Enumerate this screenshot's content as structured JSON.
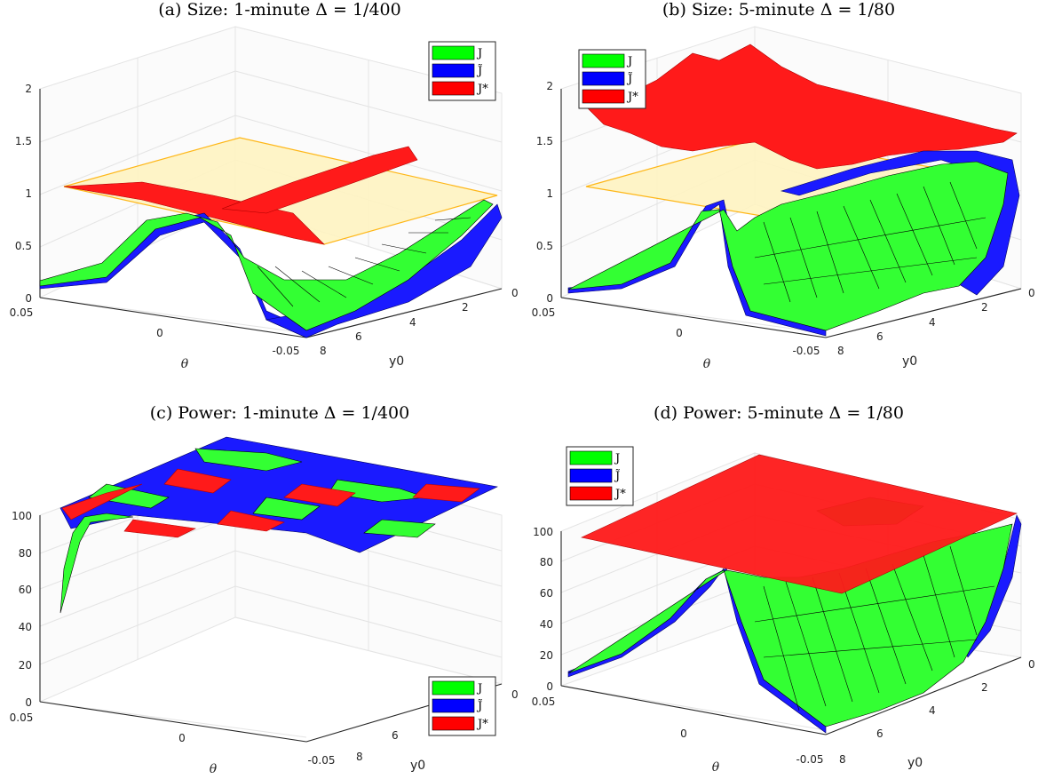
{
  "colors": {
    "J": "#00ff00",
    "J_tilde": "#0000ff",
    "J_star": "#ff0000",
    "nominal_plane": "#ffd966",
    "grid": "#e4e4e4",
    "axis": "#262626"
  },
  "legend_labels": [
    "J",
    "J̃",
    "J*"
  ],
  "chart_data": [
    {
      "type": "surface",
      "title": "(a) Size:  1-minute Δ = 1/400",
      "xlabel": "θ",
      "ylabel": "y0",
      "zlim": [
        0,
        2
      ],
      "x_ticks": [
        "0.05",
        "0",
        "-0.05"
      ],
      "y_ticks": [
        "0",
        "2",
        "4",
        "6",
        "8"
      ],
      "z_ticks": [
        "0",
        "0.5",
        "1",
        "1.5",
        "2"
      ],
      "nominal_plane_z": 1,
      "legend_position": "top-right",
      "series": [
        {
          "name": "J",
          "description": "low (~0.05) at θ = 0.05, rises to ~0.8 around θ = 0.02, dips toward 0 near θ = 0, rises back to ~0.9 at θ = -0.05"
        },
        {
          "name": "J̃",
          "description": "closely follows J, slightly above it"
        },
        {
          "name": "J*",
          "description": "near 1, slightly above and below the nominal plane"
        }
      ]
    },
    {
      "type": "surface",
      "title": "(b) Size:  5-minute Δ = 1/80",
      "xlabel": "θ",
      "ylabel": "y0",
      "zlim": [
        0,
        2
      ],
      "x_ticks": [
        "0.05",
        "0",
        "-0.05"
      ],
      "y_ticks": [
        "0",
        "2",
        "4",
        "6",
        "8"
      ],
      "z_ticks": [
        "0",
        "0.5",
        "1",
        "1.5",
        "2"
      ],
      "nominal_plane_z": 1,
      "legend_position": "top-left",
      "series": [
        {
          "name": "J",
          "description": "near 0 at θ = 0.05, steep rise near θ = 0.02, dips near θ = 0, rises toward ~1 at θ = -0.05"
        },
        {
          "name": "J̃",
          "description": "closely follows J"
        },
        {
          "name": "J*",
          "description": "around 1.5 to 2, above the nominal plane"
        }
      ]
    },
    {
      "type": "surface",
      "title": "(c) Power:  1-minute Δ = 1/400",
      "xlabel": "θ",
      "ylabel": "y0",
      "zlim": [
        0,
        100
      ],
      "x_ticks": [
        "0.05",
        "0",
        "-0.05"
      ],
      "y_ticks": [
        "0",
        "6",
        "8"
      ],
      "z_ticks": [
        "0",
        "20",
        "40",
        "60",
        "80",
        "100"
      ],
      "legend_position": "bottom-right",
      "series": [
        {
          "name": "J",
          "description": "about 100 everywhere, dropping to ~48 at the θ = 0.05 corner"
        },
        {
          "name": "J̃",
          "description": "about 100 everywhere"
        },
        {
          "name": "J*",
          "description": "about 100 everywhere"
        }
      ]
    },
    {
      "type": "surface",
      "title": "(d) Power:  5-minute Δ = 1/80",
      "xlabel": "θ",
      "ylabel": "y0",
      "zlim": [
        0,
        100
      ],
      "x_ticks": [
        "0.05",
        "0",
        "-0.05"
      ],
      "y_ticks": [
        "0",
        "2",
        "4",
        "6",
        "8"
      ],
      "z_ticks": [
        "0",
        "20",
        "40",
        "60",
        "80",
        "100"
      ],
      "legend_position": "top-left",
      "series": [
        {
          "name": "J",
          "description": "near 0 at θ = 0.05, rises to ~70 near θ = 0.02, dips toward 0 near θ = 0, rises to 100 at θ = -0.05"
        },
        {
          "name": "J̃",
          "description": "closely follows J"
        },
        {
          "name": "J*",
          "description": "about 100 everywhere"
        }
      ]
    }
  ]
}
